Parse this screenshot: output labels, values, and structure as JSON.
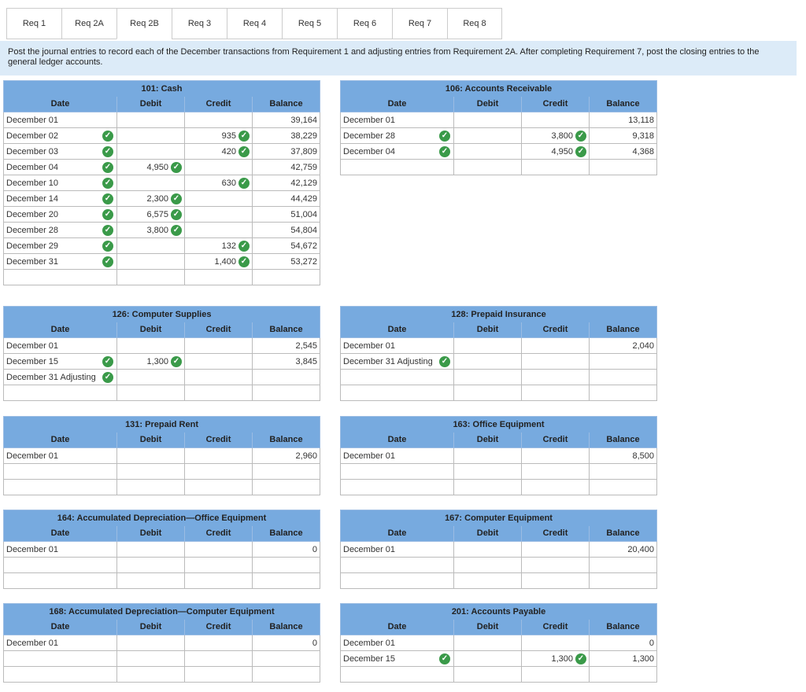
{
  "tabs": [
    "Req 1",
    "Req 2A",
    "Req 2B",
    "Req 3",
    "Req 4",
    "Req 5",
    "Req 6",
    "Req 7",
    "Req 8"
  ],
  "instruction": "Post the journal entries to record each of the December transactions from Requirement 1 and adjusting entries from Requirement 2A. After completing Requirement 7, post the closing entries to the general ledger accounts.",
  "headers": {
    "date": "Date",
    "debit": "Debit",
    "credit": "Credit",
    "balance": "Balance"
  },
  "accounts": [
    {
      "title": "101: Cash",
      "rows": [
        {
          "date": "December 01",
          "debit": "",
          "credit": "",
          "balance": "39,164",
          "check_date": false,
          "check_debit": false,
          "check_credit": false
        },
        {
          "date": "December 02",
          "debit": "",
          "credit": "935",
          "balance": "38,229",
          "check_date": true,
          "check_debit": false,
          "check_credit": true
        },
        {
          "date": "December 03",
          "debit": "",
          "credit": "420",
          "balance": "37,809",
          "check_date": true,
          "check_debit": false,
          "check_credit": true
        },
        {
          "date": "December 04",
          "debit": "4,950",
          "credit": "",
          "balance": "42,759",
          "check_date": true,
          "check_debit": true,
          "check_credit": false
        },
        {
          "date": "December 10",
          "debit": "",
          "credit": "630",
          "balance": "42,129",
          "check_date": true,
          "check_debit": false,
          "check_credit": true
        },
        {
          "date": "December 14",
          "debit": "2,300",
          "credit": "",
          "balance": "44,429",
          "check_date": true,
          "check_debit": true,
          "check_credit": false
        },
        {
          "date": "December 20",
          "debit": "6,575",
          "credit": "",
          "balance": "51,004",
          "check_date": true,
          "check_debit": true,
          "check_credit": false
        },
        {
          "date": "December 28",
          "debit": "3,800",
          "credit": "",
          "balance": "54,804",
          "check_date": true,
          "check_debit": true,
          "check_credit": false
        },
        {
          "date": "December 29",
          "debit": "",
          "credit": "132",
          "balance": "54,672",
          "check_date": true,
          "check_debit": false,
          "check_credit": true
        },
        {
          "date": "December 31",
          "debit": "",
          "credit": "1,400",
          "balance": "53,272",
          "check_date": true,
          "check_debit": false,
          "check_credit": true
        },
        {
          "date": "",
          "debit": "",
          "credit": "",
          "balance": "",
          "check_date": false,
          "check_debit": false,
          "check_credit": false
        }
      ]
    },
    {
      "title": "106: Accounts Receivable",
      "rows": [
        {
          "date": "December 01",
          "debit": "",
          "credit": "",
          "balance": "13,118",
          "check_date": false,
          "check_debit": false,
          "check_credit": false
        },
        {
          "date": "December 28",
          "debit": "",
          "credit": "3,800",
          "balance": "9,318",
          "check_date": true,
          "check_debit": false,
          "check_credit": true
        },
        {
          "date": "December 04",
          "debit": "",
          "credit": "4,950",
          "balance": "4,368",
          "check_date": true,
          "check_debit": false,
          "check_credit": true
        },
        {
          "date": "",
          "debit": "",
          "credit": "",
          "balance": "",
          "check_date": false,
          "check_debit": false,
          "check_credit": false
        }
      ]
    },
    {
      "title": "126: Computer Supplies",
      "rows": [
        {
          "date": "December 01",
          "debit": "",
          "credit": "",
          "balance": "2,545",
          "check_date": false,
          "check_debit": false,
          "check_credit": false
        },
        {
          "date": "December 15",
          "debit": "1,300",
          "credit": "",
          "balance": "3,845",
          "check_date": true,
          "check_debit": true,
          "check_credit": false
        },
        {
          "date": "December 31 Adjusting",
          "debit": "",
          "credit": "",
          "balance": "",
          "check_date": true,
          "check_debit": false,
          "check_credit": false
        },
        {
          "date": "",
          "debit": "",
          "credit": "",
          "balance": "",
          "check_date": false,
          "check_debit": false,
          "check_credit": false
        }
      ]
    },
    {
      "title": "128: Prepaid Insurance",
      "rows": [
        {
          "date": "December 01",
          "debit": "",
          "credit": "",
          "balance": "2,040",
          "check_date": false,
          "check_debit": false,
          "check_credit": false
        },
        {
          "date": "December 31 Adjusting",
          "debit": "",
          "credit": "",
          "balance": "",
          "check_date": true,
          "check_debit": false,
          "check_credit": false
        },
        {
          "date": "",
          "debit": "",
          "credit": "",
          "balance": "",
          "check_date": false,
          "check_debit": false,
          "check_credit": false
        },
        {
          "date": "",
          "debit": "",
          "credit": "",
          "balance": "",
          "check_date": false,
          "check_debit": false,
          "check_credit": false
        }
      ]
    },
    {
      "title": "131: Prepaid Rent",
      "rows": [
        {
          "date": "December 01",
          "debit": "",
          "credit": "",
          "balance": "2,960",
          "check_date": false,
          "check_debit": false,
          "check_credit": false
        },
        {
          "date": "",
          "debit": "",
          "credit": "",
          "balance": "",
          "check_date": false,
          "check_debit": false,
          "check_credit": false
        },
        {
          "date": "",
          "debit": "",
          "credit": "",
          "balance": "",
          "check_date": false,
          "check_debit": false,
          "check_credit": false
        }
      ]
    },
    {
      "title": "163: Office Equipment",
      "rows": [
        {
          "date": "December 01",
          "debit": "",
          "credit": "",
          "balance": "8,500",
          "check_date": false,
          "check_debit": false,
          "check_credit": false
        },
        {
          "date": "",
          "debit": "",
          "credit": "",
          "balance": "",
          "check_date": false,
          "check_debit": false,
          "check_credit": false
        },
        {
          "date": "",
          "debit": "",
          "credit": "",
          "balance": "",
          "check_date": false,
          "check_debit": false,
          "check_credit": false
        }
      ]
    },
    {
      "title": "164: Accumulated Depreciation—Office Equipment",
      "rows": [
        {
          "date": "December 01",
          "debit": "",
          "credit": "",
          "balance": "0",
          "check_date": false,
          "check_debit": false,
          "check_credit": false
        },
        {
          "date": "",
          "debit": "",
          "credit": "",
          "balance": "",
          "check_date": false,
          "check_debit": false,
          "check_credit": false
        },
        {
          "date": "",
          "debit": "",
          "credit": "",
          "balance": "",
          "check_date": false,
          "check_debit": false,
          "check_credit": false
        }
      ]
    },
    {
      "title": "167: Computer Equipment",
      "rows": [
        {
          "date": "December 01",
          "debit": "",
          "credit": "",
          "balance": "20,400",
          "check_date": false,
          "check_debit": false,
          "check_credit": false
        },
        {
          "date": "",
          "debit": "",
          "credit": "",
          "balance": "",
          "check_date": false,
          "check_debit": false,
          "check_credit": false
        },
        {
          "date": "",
          "debit": "",
          "credit": "",
          "balance": "",
          "check_date": false,
          "check_debit": false,
          "check_credit": false
        }
      ]
    },
    {
      "title": "168: Accumulated Depreciation—Computer Equipment",
      "rows": [
        {
          "date": "December 01",
          "debit": "",
          "credit": "",
          "balance": "0",
          "check_date": false,
          "check_debit": false,
          "check_credit": false
        },
        {
          "date": "",
          "debit": "",
          "credit": "",
          "balance": "",
          "check_date": false,
          "check_debit": false,
          "check_credit": false
        },
        {
          "date": "",
          "debit": "",
          "credit": "",
          "balance": "",
          "check_date": false,
          "check_debit": false,
          "check_credit": false
        }
      ]
    },
    {
      "title": "201: Accounts Payable",
      "rows": [
        {
          "date": "December 01",
          "debit": "",
          "credit": "",
          "balance": "0",
          "check_date": false,
          "check_debit": false,
          "check_credit": false
        },
        {
          "date": "December 15",
          "debit": "",
          "credit": "1,300",
          "balance": "1,300",
          "check_date": true,
          "check_debit": false,
          "check_credit": true
        },
        {
          "date": "",
          "debit": "",
          "credit": "",
          "balance": "",
          "check_date": false,
          "check_debit": false,
          "check_credit": false
        }
      ]
    }
  ]
}
